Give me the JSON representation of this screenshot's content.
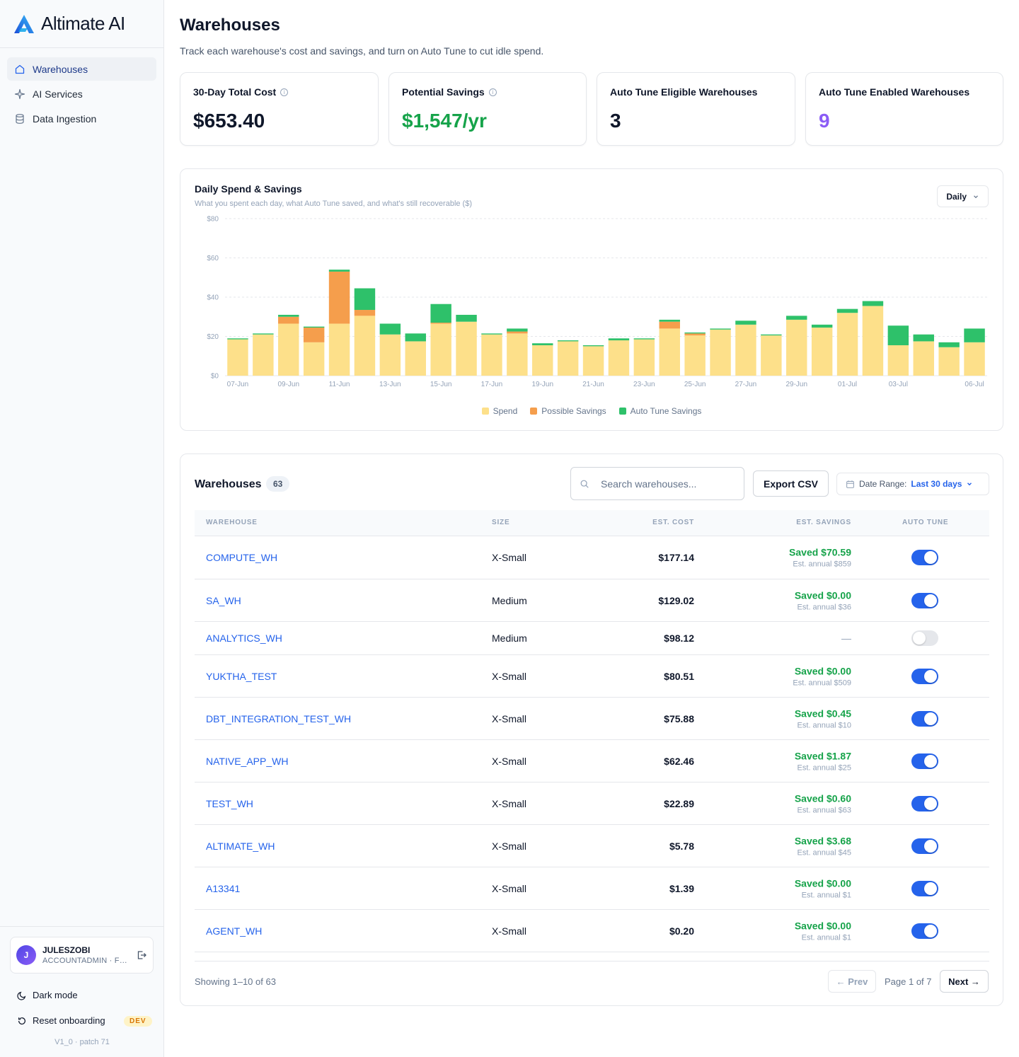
{
  "brand": {
    "name": "Altimate AI"
  },
  "sidebar": {
    "items": [
      {
        "label": "Warehouses",
        "icon": "home-icon",
        "active": true
      },
      {
        "label": "AI Services",
        "icon": "sparkle-icon",
        "active": false
      },
      {
        "label": "Data Ingestion",
        "icon": "database-icon",
        "active": false
      }
    ],
    "user": {
      "initial": "J",
      "name": "JULESZOBI",
      "role": "ACCOUNTADMIN · FULL ACCESS"
    },
    "dark_mode_label": "Dark mode",
    "reset_label": "Reset onboarding",
    "dev_badge": "DEV",
    "version": "V1_0 · patch 71"
  },
  "header": {
    "title": "Warehouses",
    "subtitle": "Track each warehouse's cost and savings, and turn on Auto Tune to cut idle spend."
  },
  "stats": [
    {
      "label": "30-Day Total Cost",
      "value": "$653.40",
      "info": true,
      "color": "#0f172a"
    },
    {
      "label": "Potential Savings",
      "value": "$1,547/yr",
      "info": true,
      "color": "#16a34a"
    },
    {
      "label": "Auto Tune Eligible Warehouses",
      "value": "3",
      "info": false,
      "color": "#0f172a"
    },
    {
      "label": "Auto Tune Enabled Warehouses",
      "value": "9",
      "info": false,
      "color": "#8b5cf6"
    }
  ],
  "chart": {
    "title": "Daily Spend & Savings",
    "subtitle": "What you spent each day, what Auto Tune saved, and what's still recoverable ($)",
    "period": "Daily"
  },
  "chart_data": {
    "type": "bar",
    "stacked": true,
    "categories": [
      "07-Jun",
      "08-Jun",
      "09-Jun",
      "10-Jun",
      "11-Jun",
      "12-Jun",
      "13-Jun",
      "14-Jun",
      "15-Jun",
      "16-Jun",
      "17-Jun",
      "18-Jun",
      "19-Jun",
      "20-Jun",
      "21-Jun",
      "22-Jun",
      "23-Jun",
      "24-Jun",
      "25-Jun",
      "26-Jun",
      "27-Jun",
      "28-Jun",
      "29-Jun",
      "30-Jun",
      "01-Jul",
      "02-Jul",
      "03-Jul",
      "04-Jul",
      "05-Jul",
      "06-Jul"
    ],
    "x_tick_labels": [
      "07-Jun",
      "09-Jun",
      "11-Jun",
      "13-Jun",
      "15-Jun",
      "17-Jun",
      "19-Jun",
      "21-Jun",
      "23-Jun",
      "25-Jun",
      "27-Jun",
      "29-Jun",
      "01-Jul",
      "03-Jul",
      "06-Jul"
    ],
    "series": [
      {
        "name": "Spend",
        "color": "#fde08a",
        "values": [
          18.5,
          21,
          26.5,
          17,
          26.5,
          30.5,
          21,
          17.5,
          26.5,
          27.5,
          21,
          21.5,
          15.5,
          17.5,
          15,
          18,
          18.5,
          24,
          20.5,
          23.5,
          26,
          20.5,
          28.5,
          24.5,
          32,
          35.5,
          15.5,
          17.5,
          14.5,
          17
        ]
      },
      {
        "name": "Possible Savings",
        "color": "#f59e4c",
        "values": [
          0,
          0,
          3.5,
          7.5,
          26.5,
          3,
          0,
          0,
          0.5,
          0,
          0,
          1,
          0,
          0,
          0,
          0,
          0,
          3.5,
          1,
          0,
          0,
          0,
          0,
          0,
          0,
          0,
          0,
          0,
          0,
          0
        ]
      },
      {
        "name": "Auto Tune Savings",
        "color": "#2ec16a",
        "values": [
          0.5,
          0.5,
          1,
          0.5,
          1,
          11,
          5.5,
          4,
          9.5,
          3.5,
          0.5,
          1.5,
          1,
          0.5,
          0.5,
          1,
          0.5,
          1,
          0.5,
          0.5,
          2,
          0.5,
          2,
          1.5,
          2,
          2.5,
          10,
          3.5,
          2.5,
          7
        ]
      }
    ],
    "y_ticks": [
      "$0",
      "$20",
      "$40",
      "$60",
      "$80"
    ],
    "ylim": [
      0,
      80
    ],
    "grid": true,
    "legend_position": "bottom"
  },
  "table": {
    "title": "Warehouses",
    "count": "63",
    "search_placeholder": "Search warehouses...",
    "export_label": "Export CSV",
    "date_range_label": "Date Range:",
    "date_range_value": "Last 30 days",
    "columns": [
      "WAREHOUSE",
      "SIZE",
      "EST. COST",
      "EST. SAVINGS",
      "AUTO TUNE"
    ],
    "rows": [
      {
        "name": "COMPUTE_WH",
        "size": "X-Small",
        "cost": "$177.14",
        "saved": "Saved $70.59",
        "annual": "Est. annual $859",
        "auto_tune": true
      },
      {
        "name": "SA_WH",
        "size": "Medium",
        "cost": "$129.02",
        "saved": "Saved $0.00",
        "annual": "Est. annual $36",
        "auto_tune": true
      },
      {
        "name": "ANALYTICS_WH",
        "size": "Medium",
        "cost": "$98.12",
        "saved": "—",
        "annual": "",
        "auto_tune": false
      },
      {
        "name": "YUKTHA_TEST",
        "size": "X-Small",
        "cost": "$80.51",
        "saved": "Saved $0.00",
        "annual": "Est. annual $509",
        "auto_tune": true
      },
      {
        "name": "DBT_INTEGRATION_TEST_WH",
        "size": "X-Small",
        "cost": "$75.88",
        "saved": "Saved $0.45",
        "annual": "Est. annual $10",
        "auto_tune": true
      },
      {
        "name": "NATIVE_APP_WH",
        "size": "X-Small",
        "cost": "$62.46",
        "saved": "Saved $1.87",
        "annual": "Est. annual $25",
        "auto_tune": true
      },
      {
        "name": "TEST_WH",
        "size": "X-Small",
        "cost": "$22.89",
        "saved": "Saved $0.60",
        "annual": "Est. annual $63",
        "auto_tune": true
      },
      {
        "name": "ALTIMATE_WH",
        "size": "X-Small",
        "cost": "$5.78",
        "saved": "Saved $3.68",
        "annual": "Est. annual $45",
        "auto_tune": true
      },
      {
        "name": "A13341",
        "size": "X-Small",
        "cost": "$1.39",
        "saved": "Saved $0.00",
        "annual": "Est. annual $1",
        "auto_tune": true
      },
      {
        "name": "AGENT_WH",
        "size": "X-Small",
        "cost": "$0.20",
        "saved": "Saved $0.00",
        "annual": "Est. annual $1",
        "auto_tune": true
      }
    ],
    "showing": "Showing 1–10 of 63",
    "prev_label": "← Prev",
    "page_indicator": "Page 1 of 7",
    "next_label": "Next →"
  }
}
